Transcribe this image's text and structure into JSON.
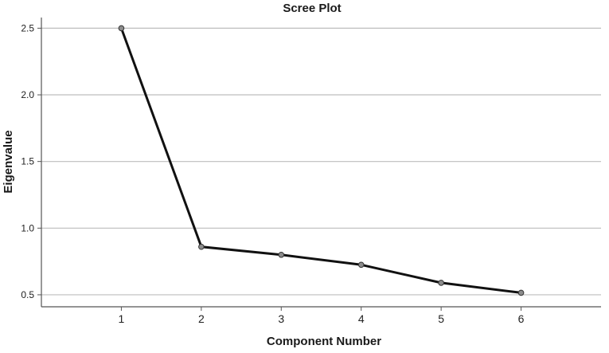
{
  "chart_data": {
    "type": "line",
    "title": "Scree Plot",
    "xlabel": "Component Number",
    "ylabel": "Eigenvalue",
    "x": [
      1,
      2,
      3,
      4,
      5,
      6
    ],
    "series": [
      {
        "values": [
          2.5,
          0.86,
          0.8,
          0.725,
          0.59,
          0.515
        ]
      }
    ],
    "xlim": [
      0.0,
      7.0
    ],
    "ylim": [
      0.41,
      2.58
    ],
    "yticks": [
      "0.5",
      "1.0",
      "1.5",
      "2.0",
      "2.5"
    ],
    "xticks": [
      "1",
      "2",
      "3",
      "4",
      "5",
      "6"
    ],
    "grid": "horizontal",
    "colors": {
      "line": "#111111",
      "marker_fill": "#8c8c8c",
      "marker_stroke": "#333333",
      "grid": "#bdbdbd",
      "axis": "#555555"
    }
  }
}
